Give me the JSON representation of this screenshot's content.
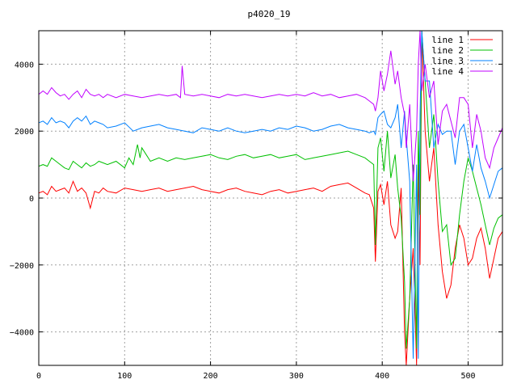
{
  "chart_data": {
    "type": "line",
    "title": "p4020_19",
    "xlabel": "",
    "ylabel": "",
    "xlim": [
      0,
      540
    ],
    "ylim": [
      -5000,
      5000
    ],
    "x_ticks": [
      0,
      100,
      200,
      300,
      400,
      500
    ],
    "y_ticks": [
      -4000,
      -2000,
      0,
      2000,
      4000
    ],
    "grid": true,
    "legend_position": "top-right",
    "series": [
      {
        "name": "line 1",
        "color": "#ff0000",
        "x": [
          0,
          5,
          10,
          15,
          20,
          25,
          30,
          35,
          40,
          45,
          50,
          55,
          60,
          65,
          70,
          75,
          80,
          90,
          100,
          110,
          120,
          130,
          140,
          150,
          160,
          170,
          180,
          190,
          200,
          210,
          220,
          230,
          240,
          250,
          260,
          270,
          280,
          290,
          300,
          310,
          320,
          330,
          340,
          350,
          360,
          370,
          380,
          385,
          390,
          392,
          395,
          398,
          402,
          406,
          410,
          415,
          418,
          422,
          426,
          428,
          432,
          436,
          440,
          442,
          444,
          446,
          450,
          455,
          460,
          465,
          470,
          475,
          480,
          485,
          490,
          495,
          500,
          505,
          510,
          515,
          520,
          525,
          530,
          535,
          540
        ],
        "values": [
          150,
          200,
          100,
          350,
          200,
          250,
          300,
          150,
          500,
          200,
          300,
          150,
          -300,
          200,
          150,
          300,
          200,
          150,
          300,
          250,
          200,
          250,
          300,
          200,
          250,
          300,
          350,
          250,
          200,
          150,
          250,
          300,
          200,
          150,
          100,
          200,
          250,
          150,
          200,
          250,
          300,
          200,
          350,
          400,
          450,
          300,
          150,
          100,
          -300,
          -1900,
          200,
          400,
          -200,
          500,
          -800,
          -1200,
          -1000,
          300,
          -4000,
          -5000,
          -3000,
          -1500,
          -5000,
          1000,
          -2000,
          5000,
          2000,
          500,
          1500,
          -800,
          -2200,
          -3000,
          -2600,
          -1500,
          -800,
          -1200,
          -2000,
          -1800,
          -1200,
          -900,
          -1500,
          -2400,
          -1800,
          -1200,
          -1000
        ]
      },
      {
        "name": "line 2",
        "color": "#00c000",
        "x": [
          0,
          5,
          10,
          15,
          20,
          25,
          30,
          35,
          40,
          45,
          50,
          55,
          60,
          65,
          70,
          75,
          80,
          90,
          100,
          105,
          110,
          115,
          118,
          120,
          125,
          130,
          135,
          140,
          150,
          160,
          170,
          180,
          190,
          200,
          210,
          220,
          230,
          240,
          250,
          260,
          270,
          280,
          290,
          300,
          310,
          320,
          330,
          340,
          350,
          360,
          370,
          380,
          385,
          390,
          392,
          395,
          398,
          402,
          406,
          410,
          415,
          418,
          422,
          426,
          428,
          432,
          436,
          440,
          442,
          444,
          446,
          450,
          455,
          460,
          465,
          470,
          475,
          480,
          485,
          490,
          495,
          500,
          505,
          510,
          515,
          520,
          525,
          530,
          535,
          540
        ],
        "values": [
          950,
          1000,
          950,
          1200,
          1100,
          1000,
          900,
          850,
          1100,
          1000,
          900,
          1050,
          950,
          1000,
          1100,
          1050,
          1000,
          1100,
          900,
          1200,
          1000,
          1600,
          1200,
          1500,
          1300,
          1100,
          1150,
          1200,
          1100,
          1200,
          1150,
          1200,
          1250,
          1300,
          1200,
          1150,
          1250,
          1300,
          1200,
          1250,
          1300,
          1200,
          1250,
          1300,
          1150,
          1200,
          1250,
          1300,
          1350,
          1400,
          1300,
          1200,
          1100,
          1000,
          -1400,
          1500,
          1800,
          800,
          2000,
          600,
          1300,
          300,
          -600,
          -2500,
          -4500,
          -3000,
          1000,
          -4500,
          2000,
          -500,
          5000,
          3500,
          1500,
          2500,
          500,
          -1000,
          -800,
          -2000,
          -1800,
          -500,
          500,
          1200,
          800,
          300,
          -200,
          -800,
          -1400,
          -900,
          -600,
          -500
        ]
      },
      {
        "name": "line 3",
        "color": "#0080ff",
        "x": [
          0,
          5,
          10,
          15,
          20,
          25,
          30,
          35,
          40,
          45,
          50,
          55,
          60,
          65,
          70,
          75,
          80,
          90,
          100,
          110,
          120,
          130,
          140,
          150,
          160,
          170,
          180,
          190,
          200,
          210,
          220,
          230,
          240,
          250,
          260,
          270,
          280,
          290,
          300,
          310,
          320,
          330,
          340,
          350,
          360,
          370,
          380,
          385,
          390,
          392,
          395,
          398,
          402,
          406,
          410,
          415,
          418,
          422,
          426,
          428,
          432,
          436,
          440,
          442,
          444,
          446,
          450,
          455,
          460,
          465,
          470,
          475,
          480,
          485,
          490,
          495,
          500,
          505,
          510,
          515,
          520,
          525,
          530,
          535,
          540
        ],
        "values": [
          2250,
          2300,
          2200,
          2400,
          2250,
          2300,
          2250,
          2100,
          2300,
          2400,
          2300,
          2450,
          2200,
          2300,
          2250,
          2200,
          2100,
          2150,
          2250,
          2000,
          2100,
          2150,
          2200,
          2100,
          2050,
          2000,
          1950,
          2100,
          2050,
          2000,
          2100,
          2000,
          1950,
          2000,
          2050,
          2000,
          2100,
          2050,
          2150,
          2100,
          2000,
          2050,
          2150,
          2200,
          2100,
          2050,
          2000,
          1950,
          2000,
          1900,
          2400,
          2500,
          2600,
          2200,
          2100,
          2400,
          2800,
          1500,
          2600,
          1800,
          500,
          -4800,
          1000,
          -4800,
          2500,
          5000,
          3500,
          3500,
          1500,
          2200,
          1900,
          2000,
          2000,
          1000,
          2000,
          2200,
          1500,
          800,
          1600,
          900,
          500,
          0,
          400,
          800,
          900
        ]
      },
      {
        "name": "line 4",
        "color": "#c000ff",
        "x": [
          0,
          5,
          10,
          15,
          20,
          25,
          30,
          35,
          40,
          45,
          50,
          55,
          60,
          65,
          70,
          75,
          80,
          90,
          100,
          110,
          120,
          130,
          140,
          150,
          160,
          165,
          167,
          170,
          180,
          190,
          200,
          210,
          220,
          230,
          240,
          250,
          260,
          270,
          280,
          290,
          300,
          310,
          320,
          330,
          340,
          350,
          360,
          370,
          380,
          385,
          390,
          392,
          395,
          398,
          402,
          406,
          410,
          415,
          418,
          422,
          426,
          428,
          432,
          436,
          440,
          442,
          444,
          446,
          450,
          455,
          460,
          465,
          470,
          475,
          480,
          485,
          490,
          495,
          500,
          505,
          510,
          515,
          520,
          525,
          530,
          535,
          540
        ],
        "values": [
          3100,
          3200,
          3100,
          3300,
          3150,
          3050,
          3100,
          2950,
          3100,
          3200,
          3000,
          3250,
          3100,
          3050,
          3100,
          3000,
          3100,
          3000,
          3100,
          3050,
          3000,
          3050,
          3100,
          3050,
          3100,
          3000,
          3950,
          3100,
          3050,
          3100,
          3050,
          3000,
          3100,
          3050,
          3100,
          3050,
          3000,
          3050,
          3100,
          3050,
          3100,
          3050,
          3150,
          3050,
          3100,
          3000,
          3050,
          3100,
          3000,
          2900,
          2800,
          2600,
          3000,
          3800,
          3200,
          3700,
          4400,
          3400,
          3800,
          3000,
          2500,
          1500,
          2800,
          500,
          2000,
          4000,
          5000,
          3200,
          4000,
          3000,
          3500,
          1600,
          2600,
          2800,
          2300,
          1800,
          3000,
          3000,
          2800,
          1500,
          2500,
          2000,
          1200,
          900,
          1500,
          1800,
          2100
        ]
      }
    ]
  }
}
